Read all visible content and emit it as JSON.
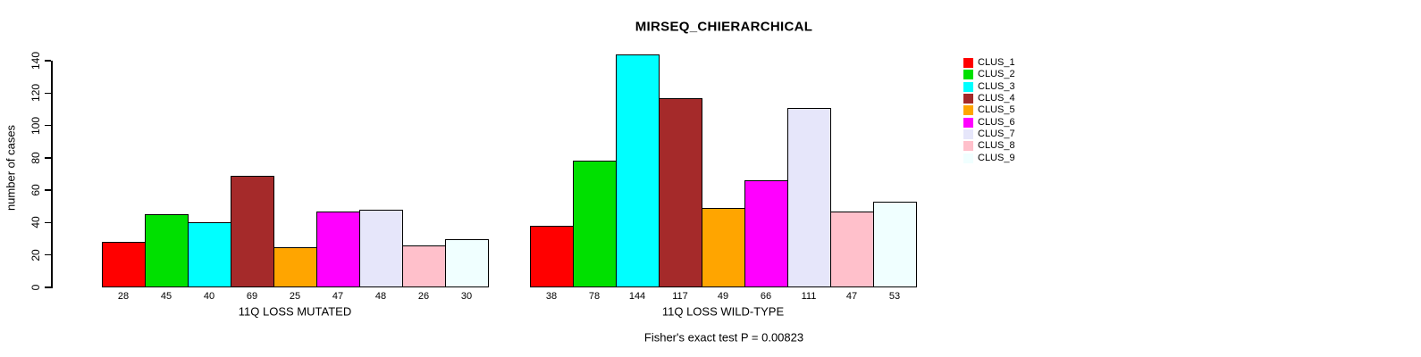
{
  "title": "MIRSEQ_CHIERARCHICAL",
  "footer": "Fisher's exact test P = 0.00823",
  "y_axis": {
    "label": "number of cases",
    "ticks": [
      0,
      20,
      40,
      60,
      80,
      100,
      120,
      140
    ]
  },
  "legend": [
    {
      "label": "CLUS_1",
      "color": "#FF0000"
    },
    {
      "label": "CLUS_2",
      "color": "#00E000"
    },
    {
      "label": "CLUS_3",
      "color": "#00FFFF"
    },
    {
      "label": "CLUS_4",
      "color": "#A52A2A"
    },
    {
      "label": "CLUS_5",
      "color": "#FFA500"
    },
    {
      "label": "CLUS_6",
      "color": "#FF00FF"
    },
    {
      "label": "CLUS_7",
      "color": "#E6E6FA"
    },
    {
      "label": "CLUS_8",
      "color": "#FFC0CB"
    },
    {
      "label": "CLUS_9",
      "color": "#F0FFFF"
    }
  ],
  "chart_data": {
    "type": "bar",
    "title": "MIRSEQ_CHIERARCHICAL",
    "ylabel": "number of cases",
    "ylim": [
      0,
      140
    ],
    "grid": false,
    "legend_position": "top-right",
    "clusters": [
      "CLUS_1",
      "CLUS_2",
      "CLUS_3",
      "CLUS_4",
      "CLUS_5",
      "CLUS_6",
      "CLUS_7",
      "CLUS_8",
      "CLUS_9"
    ],
    "colors": [
      "#FF0000",
      "#00E000",
      "#00FFFF",
      "#A52A2A",
      "#FFA500",
      "#FF00FF",
      "#E6E6FA",
      "#FFC0CB",
      "#F0FFFF"
    ],
    "groups": [
      {
        "label": "11Q LOSS MUTATED",
        "values": [
          28,
          45,
          40,
          69,
          25,
          47,
          48,
          26,
          30
        ]
      },
      {
        "label": "11Q LOSS WILD-TYPE",
        "values": [
          38,
          78,
          144,
          117,
          49,
          66,
          111,
          47,
          53
        ]
      }
    ],
    "annotation": "Fisher's exact test P = 0.00823"
  }
}
